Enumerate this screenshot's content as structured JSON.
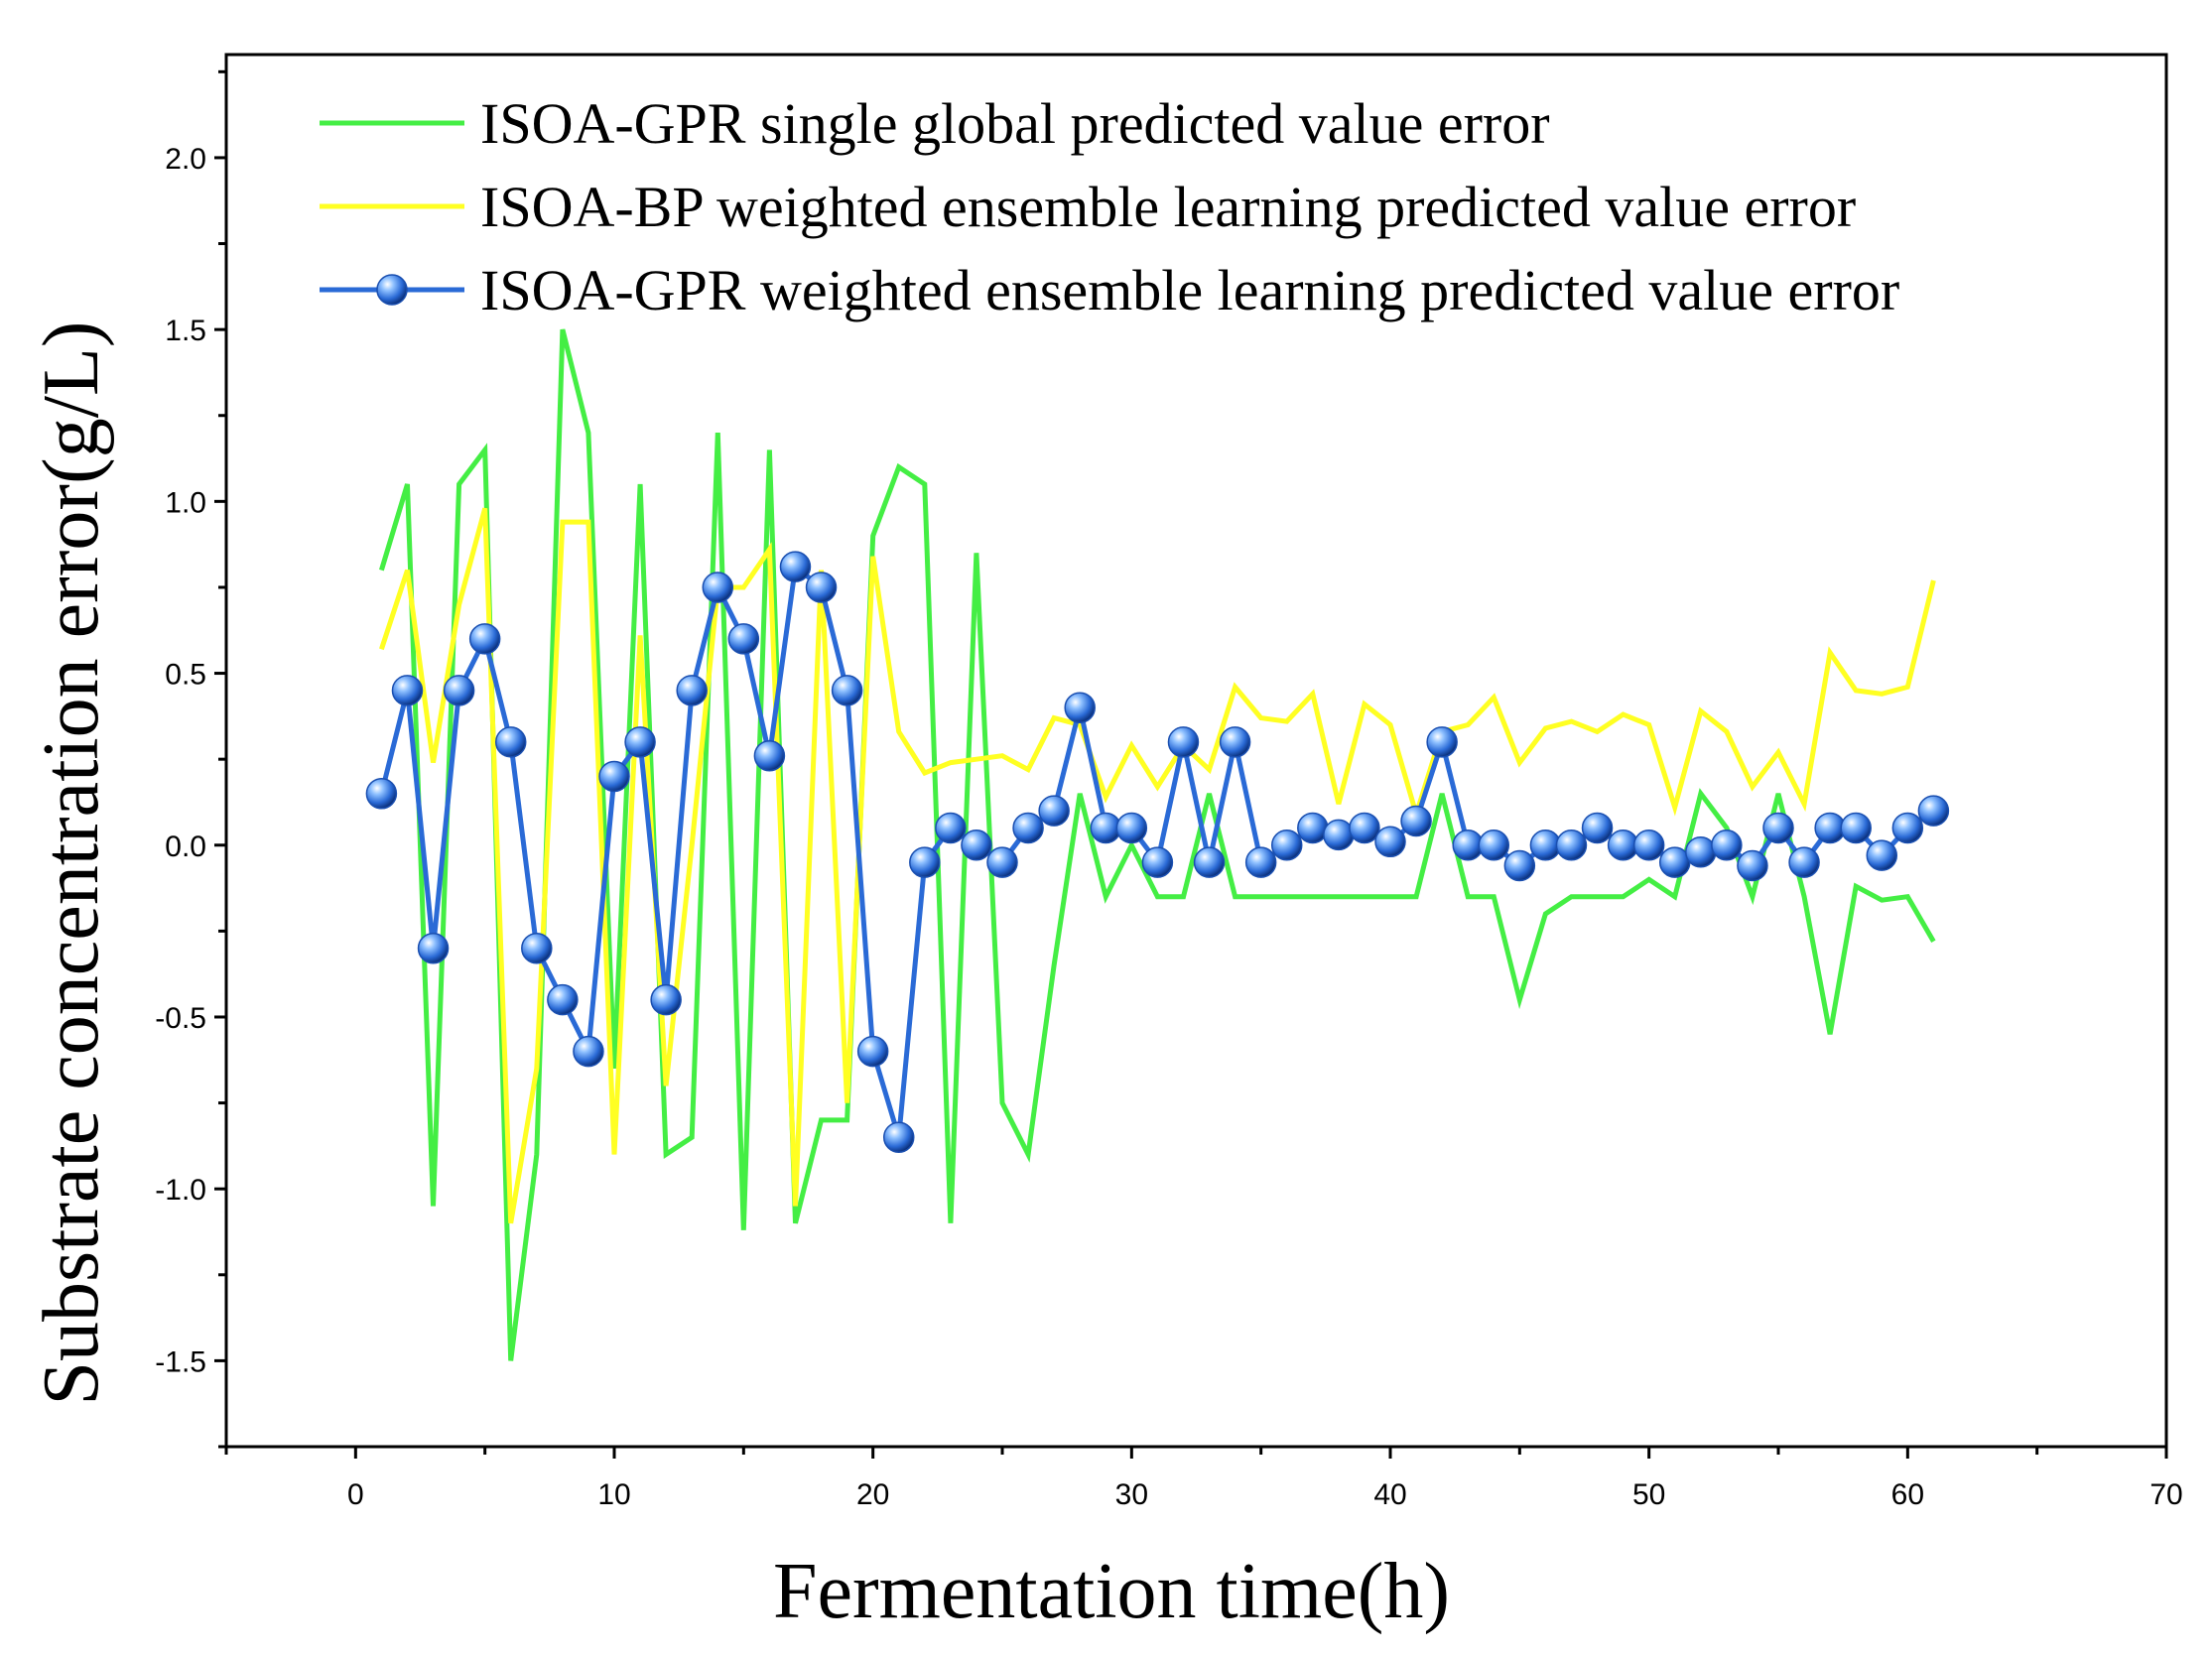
{
  "chart_data": {
    "type": "line",
    "title": "",
    "xlabel": "Fermentation time(h)",
    "ylabel": "Substrate concentration error(g/L)",
    "xlim": [
      -5,
      70
    ],
    "ylim": [
      -1.75,
      2.3
    ],
    "xticks": [
      0,
      10,
      20,
      30,
      40,
      50,
      60,
      70
    ],
    "yticks": [
      -1.5,
      -1.0,
      -0.5,
      0.0,
      0.5,
      1.0,
      1.5,
      2.0
    ],
    "xtick_labels": [
      "0",
      "10",
      "20",
      "30",
      "40",
      "50",
      "60",
      "70"
    ],
    "ytick_labels": [
      "-1.5",
      "-1.0",
      "-0.5",
      "0.0",
      "0.5",
      "1.0",
      "1.5",
      "2.0"
    ],
    "legend_position": "top",
    "x": [
      1,
      2,
      3,
      4,
      5,
      6,
      7,
      8,
      9,
      10,
      11,
      12,
      13,
      14,
      15,
      16,
      17,
      18,
      19,
      20,
      21,
      22,
      23,
      24,
      25,
      26,
      27,
      28,
      29,
      30,
      31,
      32,
      33,
      34,
      35,
      36,
      37,
      38,
      39,
      40,
      41,
      42,
      43,
      44,
      45,
      46,
      47,
      48,
      49,
      50,
      51,
      52,
      53,
      54,
      55,
      56,
      57,
      58,
      59,
      60,
      61
    ],
    "series": [
      {
        "name": "ISOA-GPR single global predicted value error",
        "color": "#44ee44",
        "marker": "none",
        "values": [
          0.8,
          1.05,
          -1.05,
          1.05,
          1.15,
          -1.5,
          -0.9,
          1.5,
          1.2,
          -0.65,
          1.05,
          -0.9,
          -0.85,
          1.2,
          -1.12,
          1.15,
          -1.1,
          -0.8,
          -0.8,
          0.9,
          1.1,
          1.05,
          -1.1,
          0.85,
          -0.75,
          -0.9,
          -0.35,
          0.15,
          -0.15,
          0.0,
          -0.15,
          -0.15,
          0.15,
          -0.15,
          -0.15,
          -0.15,
          -0.15,
          -0.15,
          -0.15,
          -0.15,
          -0.15,
          0.15,
          -0.15,
          -0.15,
          -0.45,
          -0.2,
          -0.15,
          -0.15,
          -0.15,
          -0.1,
          -0.15,
          0.15,
          0.05,
          -0.15,
          0.15,
          -0.15,
          -0.55,
          -0.12,
          -0.16,
          -0.15,
          -0.28
        ]
      },
      {
        "name": "ISOA-BP weighted ensemble learning predicted value error",
        "color": "#ffff22",
        "marker": "none",
        "values": [
          0.57,
          0.8,
          0.24,
          0.7,
          0.98,
          -1.1,
          -0.65,
          0.94,
          0.94,
          -0.9,
          0.61,
          -0.7,
          0.0,
          0.75,
          0.75,
          0.86,
          -1.05,
          0.8,
          -0.75,
          0.84,
          0.33,
          0.21,
          0.24,
          0.25,
          0.26,
          0.22,
          0.37,
          0.35,
          0.14,
          0.29,
          0.17,
          0.29,
          0.22,
          0.46,
          0.37,
          0.36,
          0.44,
          0.12,
          0.41,
          0.35,
          0.09,
          0.33,
          0.35,
          0.43,
          0.24,
          0.34,
          0.36,
          0.33,
          0.38,
          0.35,
          0.11,
          0.39,
          0.33,
          0.17,
          0.27,
          0.12,
          0.56,
          0.45,
          0.44,
          0.46,
          0.77
        ]
      },
      {
        "name": "ISOA-GPR weighted ensemble learning predicted value error",
        "color": "#2a6ad6",
        "marker": "sphere",
        "values": [
          0.15,
          0.45,
          -0.3,
          0.45,
          0.6,
          0.3,
          -0.3,
          -0.45,
          -0.6,
          0.2,
          0.3,
          -0.45,
          0.45,
          0.75,
          0.6,
          0.26,
          0.81,
          0.75,
          0.45,
          -0.6,
          -0.85,
          -0.05,
          0.05,
          0.0,
          -0.05,
          0.05,
          0.1,
          0.4,
          0.05,
          0.05,
          -0.05,
          0.3,
          -0.05,
          0.3,
          -0.05,
          0.0,
          0.05,
          0.03,
          0.05,
          0.01,
          0.07,
          0.3,
          0.0,
          0.0,
          -0.06,
          0.0,
          0.0,
          0.05,
          0.0,
          0.0,
          -0.05,
          -0.02,
          0.0,
          -0.06,
          0.05,
          -0.05,
          0.05,
          0.05,
          -0.03,
          0.05,
          0.1
        ]
      }
    ]
  }
}
